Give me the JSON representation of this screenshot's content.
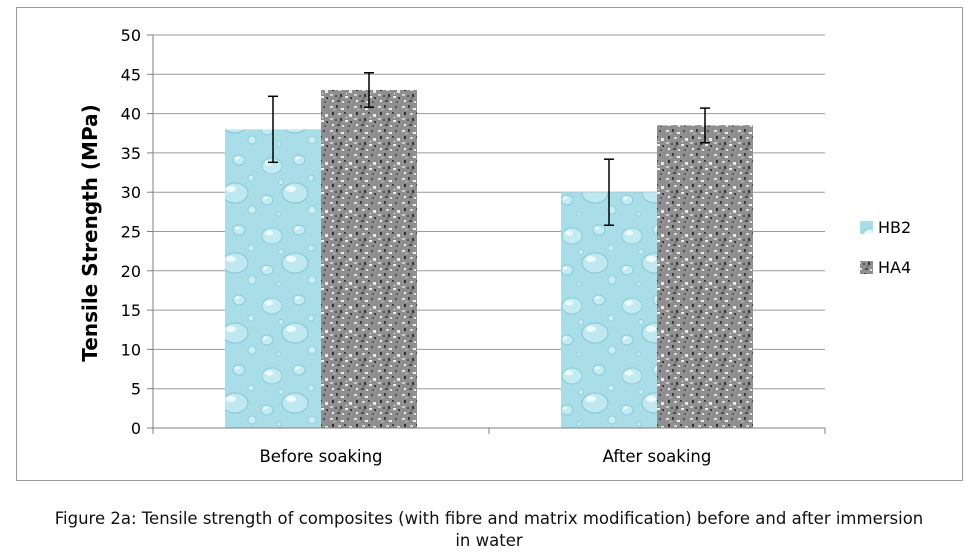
{
  "chart_data": {
    "type": "bar",
    "categories": [
      "Before soaking",
      "After soaking"
    ],
    "series": [
      {
        "name": "HB2",
        "values": [
          38,
          30
        ],
        "error": [
          4.2,
          4.2
        ],
        "pattern": "water-drops"
      },
      {
        "name": "HA4",
        "values": [
          43,
          38.5
        ],
        "error": [
          2.2,
          2.2
        ],
        "pattern": "granite"
      }
    ],
    "title": "",
    "xlabel": "",
    "ylabel": "Tensile Strength (MPa)",
    "ylim": [
      0,
      50
    ],
    "yticks": [
      0,
      5,
      10,
      15,
      20,
      25,
      30,
      35,
      40,
      45,
      50
    ],
    "grid": true,
    "legend_position": "right"
  },
  "colors": {
    "hb2_fill": "#a9dde8",
    "hb2_highlight": "#d9f3f8",
    "ha4_fill": "#8c8c8c",
    "gridline": "#9a9a9a",
    "axis": "#7f7f7f"
  },
  "caption": {
    "line1": "Figure 2a: Tensile strength of composites (with fibre and matrix modification) before and after immersion",
    "line2": "in water"
  }
}
